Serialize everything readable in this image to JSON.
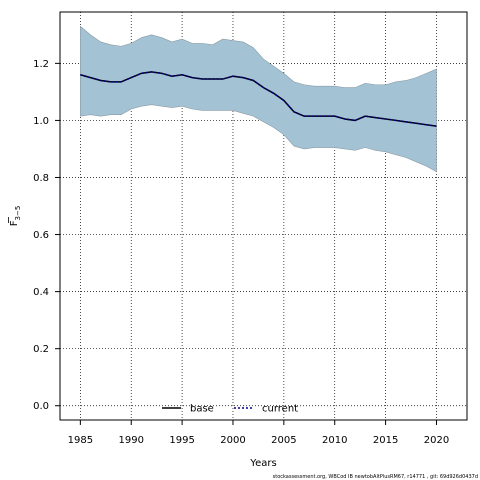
{
  "chart_data": {
    "type": "line",
    "xlabel": "Years",
    "ylabel_main": "F",
    "ylabel_sub": "3−5",
    "xlim": [
      1983,
      2023
    ],
    "ylim": [
      -0.05,
      1.38
    ],
    "x_ticks": [
      1985,
      1990,
      1995,
      2000,
      2005,
      2010,
      2015,
      2020
    ],
    "y_ticks": [
      0.0,
      0.2,
      0.4,
      0.6,
      0.8,
      1.0,
      1.2
    ],
    "grid": true,
    "legend_placement": "bottom-center",
    "x": [
      1985,
      1986,
      1987,
      1988,
      1989,
      1990,
      1991,
      1992,
      1993,
      1994,
      1995,
      1996,
      1997,
      1998,
      1999,
      2000,
      2001,
      2002,
      2003,
      2004,
      2005,
      2006,
      2007,
      2008,
      2009,
      2010,
      2011,
      2012,
      2013,
      2014,
      2015,
      2016,
      2017,
      2018,
      2019,
      2020
    ],
    "series": [
      {
        "name": "base",
        "style": "solid",
        "color": "#000000",
        "values": [
          1.16,
          1.15,
          1.14,
          1.135,
          1.135,
          1.15,
          1.165,
          1.17,
          1.165,
          1.155,
          1.16,
          1.15,
          1.145,
          1.145,
          1.145,
          1.155,
          1.15,
          1.14,
          1.115,
          1.095,
          1.07,
          1.03,
          1.015,
          1.015,
          1.015,
          1.015,
          1.005,
          1.0,
          1.015,
          1.01,
          1.005,
          1.0,
          0.995,
          0.99,
          0.985,
          0.98
        ],
        "lower": [
          1.015,
          1.02,
          1.015,
          1.02,
          1.02,
          1.04,
          1.05,
          1.055,
          1.05,
          1.045,
          1.05,
          1.04,
          1.035,
          1.035,
          1.035,
          1.035,
          1.025,
          1.015,
          0.995,
          0.975,
          0.95,
          0.91,
          0.9,
          0.905,
          0.905,
          0.905,
          0.9,
          0.895,
          0.905,
          0.895,
          0.89,
          0.88,
          0.87,
          0.855,
          0.84,
          0.82
        ],
        "upper": [
          1.33,
          1.3,
          1.275,
          1.265,
          1.26,
          1.27,
          1.29,
          1.3,
          1.29,
          1.275,
          1.285,
          1.27,
          1.27,
          1.265,
          1.285,
          1.28,
          1.275,
          1.255,
          1.215,
          1.19,
          1.165,
          1.135,
          1.125,
          1.12,
          1.12,
          1.12,
          1.115,
          1.115,
          1.13,
          1.125,
          1.125,
          1.135,
          1.14,
          1.15,
          1.165,
          1.18
        ]
      },
      {
        "name": "current",
        "style": "dotted",
        "color": "#00008b",
        "values": [
          1.16,
          1.15,
          1.14,
          1.135,
          1.135,
          1.15,
          1.165,
          1.17,
          1.165,
          1.155,
          1.16,
          1.15,
          1.145,
          1.145,
          1.145,
          1.155,
          1.15,
          1.14,
          1.115,
          1.095,
          1.07,
          1.03,
          1.015,
          1.015,
          1.015,
          1.015,
          1.005,
          1.0,
          1.015,
          1.01,
          1.005,
          1.0,
          0.995,
          0.99,
          0.985,
          0.98
        ]
      }
    ],
    "band_color": "#a3c3d5",
    "band_edge_color": "#8a9aa5"
  },
  "footer_text": "stockassessment.org, WBCod IB newtobAltPlusRM67, r14771 , git: 69d926d0437d"
}
